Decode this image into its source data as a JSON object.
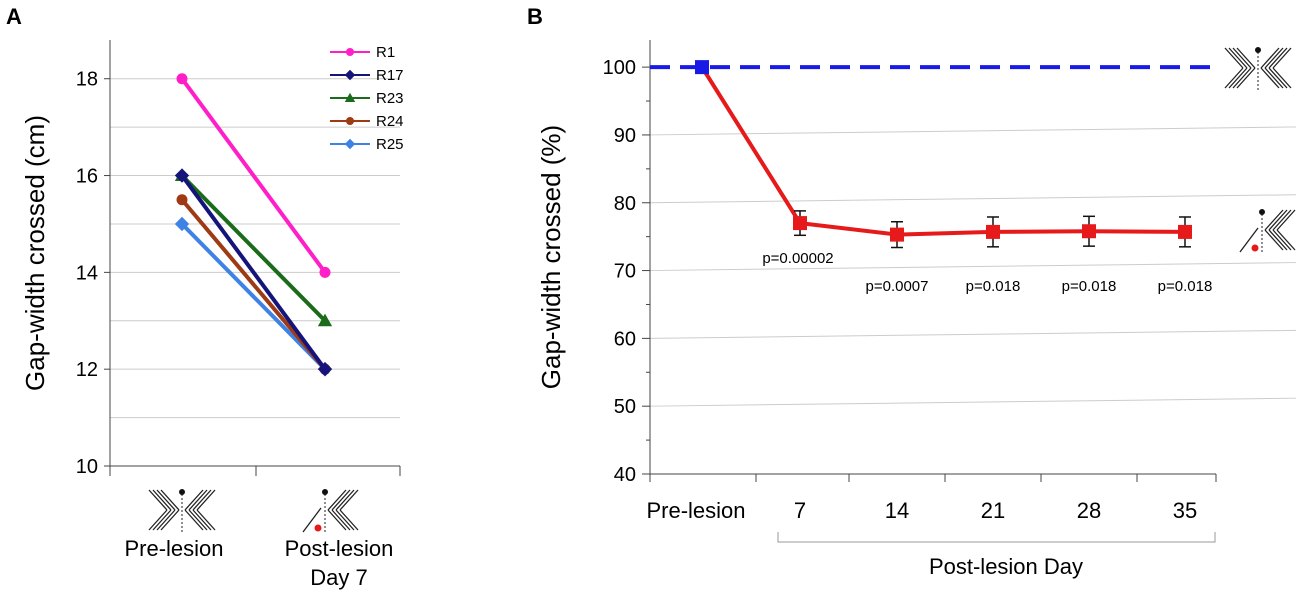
{
  "chart_data": [
    {
      "panel": "A",
      "type": "line",
      "ylabel": "Gap-width crossed (cm)",
      "ylim": [
        10,
        18.8
      ],
      "yticks": [
        10,
        12,
        14,
        16,
        18
      ],
      "grid": true,
      "categories": [
        "Pre-lesion",
        "Post-lesion Day 7"
      ],
      "category_lines": [
        [
          "Pre-lesion"
        ],
        [
          "Post-lesion",
          "Day 7"
        ]
      ],
      "category_icons": [
        "whisker-intact-icon",
        "whisker-lesion-icon"
      ],
      "legend_position": "top-right",
      "series": [
        {
          "name": "R1",
          "color": "#ff1fc8",
          "marker": "circle",
          "values": [
            18.0,
            14.0
          ]
        },
        {
          "name": "R17",
          "color": "#14147a",
          "marker": "diamond",
          "values": [
            16.0,
            12.0
          ]
        },
        {
          "name": "R23",
          "color": "#1a6b1a",
          "marker": "triangle",
          "values": [
            16.0,
            13.0
          ]
        },
        {
          "name": "R24",
          "color": "#9e3a14",
          "marker": "circle",
          "values": [
            15.5,
            12.0
          ]
        },
        {
          "name": "R25",
          "color": "#3f82e6",
          "marker": "diamond",
          "values": [
            15.0,
            12.0
          ]
        }
      ]
    },
    {
      "panel": "B",
      "type": "line",
      "ylabel": "Gap-width crossed (%)",
      "xlabel": "Post-lesion Day",
      "ylim": [
        40,
        104
      ],
      "yticks": [
        40,
        50,
        60,
        70,
        80,
        90,
        100
      ],
      "grid": true,
      "categories": [
        "Pre-lesion",
        "7",
        "14",
        "21",
        "28",
        "35"
      ],
      "baseline": {
        "value": 100,
        "color": "#1a1ae6",
        "style": "dashed"
      },
      "series": [
        {
          "name": "Gap-width crossed",
          "color": "#e61a1a",
          "marker": "square",
          "first_marker_color": "#1a1ae6",
          "values": [
            100,
            77,
            75.3,
            75.7,
            75.8,
            75.7
          ],
          "errors": [
            0,
            1.8,
            1.9,
            2.2,
            2.2,
            2.2
          ],
          "pvalues": [
            "",
            "p=0.00002",
            "p=0.0007",
            "p=0.018",
            "p=0.018",
            "p=0.018"
          ]
        }
      ],
      "side_icons": [
        "whisker-intact-icon",
        "whisker-lesion-icon"
      ]
    }
  ],
  "panel_labels": [
    "A",
    "B"
  ]
}
